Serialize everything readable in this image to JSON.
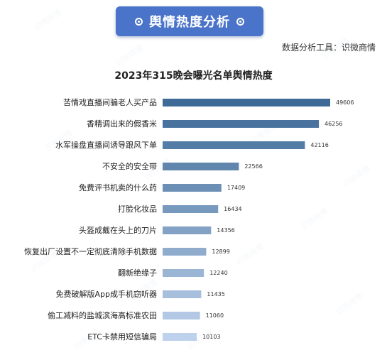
{
  "header": {
    "banner_title": "舆情热度分析",
    "source": "数据分析工具：识微商情"
  },
  "colors": {
    "banner": "#4a74c9",
    "bar_darkest": "#3d6a96",
    "bar_lightest": "#bed1ed"
  },
  "chart_data": {
    "type": "bar",
    "orientation": "horizontal",
    "title": "2023年315晚会曝光名单舆情热度",
    "xlabel": "",
    "ylabel": "",
    "grid": false,
    "categories": [
      "苦情戏直播间骗老人买产品",
      "香精调出来的假香米",
      "水军操盘直播间诱导跟风下单",
      "不安全的安全带",
      "免费评书机卖的什么药",
      "打脸化妆品",
      "头盔成戴在头上的刀片",
      "恢复出厂设置不一定彻底清除手机数据",
      "翻新绝缘子",
      "免费破解版App成手机窃听器",
      "偷工减料的盐城滨海高标准农田",
      "ETC卡禁用短信骗局"
    ],
    "values": [
      49606,
      46256,
      42116,
      22566,
      17409,
      16434,
      14356,
      12899,
      12240,
      11435,
      11060,
      10103
    ]
  }
}
